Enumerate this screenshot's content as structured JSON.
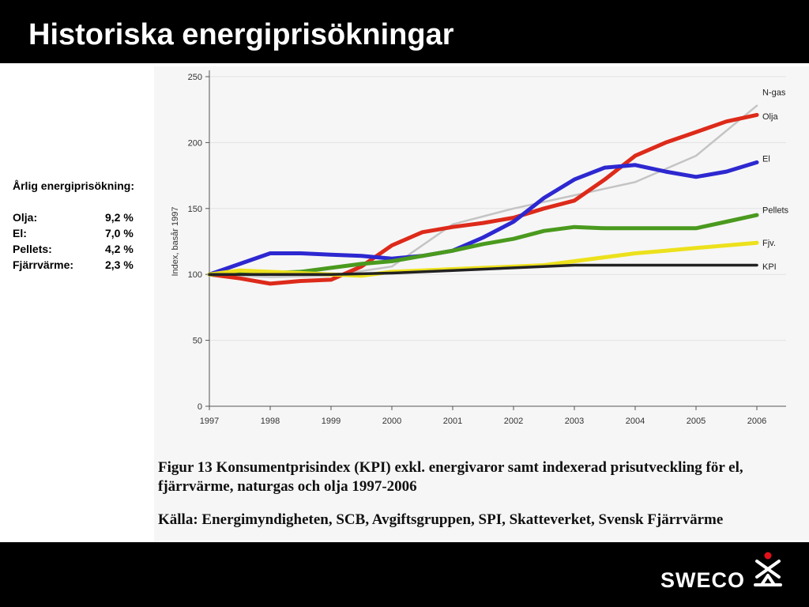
{
  "slide": {
    "title": "Historiska energiprisökningar"
  },
  "side_panel": {
    "heading": "Årlig energiprisökning:",
    "rows": [
      {
        "label": "Olja:",
        "value": "9,2 %"
      },
      {
        "label": "El:",
        "value": "7,0 %"
      },
      {
        "label": "Pellets:",
        "value": "4,2 %"
      },
      {
        "label": "Fjärrvärme:",
        "value": "2,3 %"
      }
    ]
  },
  "chart_data": {
    "type": "line",
    "ylabel": "Index, basår 1997",
    "xlabel": "",
    "ylim": [
      0,
      250
    ],
    "xlim": [
      1997,
      2006
    ],
    "y_ticks": [
      0,
      50,
      100,
      150,
      200,
      250
    ],
    "x_ticks": [
      1997,
      1998,
      1999,
      2000,
      2001,
      2002,
      2003,
      2004,
      2005,
      2006
    ],
    "grid": true,
    "legend": "inline-right",
    "caption": "Figur 13 Konsumentprisindex (KPI) exkl. energivaror samt indexerad prisutveckling för el, fjärrvärme, naturgas och olja 1997-2006",
    "source": "Källa: Energimyndigheten, SCB, Avgiftsgruppen, SPI, Skatteverket, Svensk Fjärrvärme",
    "series": [
      {
        "name": "N-gas",
        "color": "#c4c4c4",
        "x": [
          1997,
          1998,
          1999,
          2000,
          2001,
          2002,
          2003,
          2004,
          2005,
          2006
        ],
        "y": [
          100,
          98,
          99,
          106,
          138,
          150,
          160,
          170,
          190,
          228
        ]
      },
      {
        "name": "Olja",
        "color": "#dd2a1a",
        "x": [
          1997,
          1997.5,
          1998,
          1998.5,
          1999,
          1999.5,
          2000,
          2000.5,
          2001,
          2001.5,
          2002,
          2002.5,
          2003,
          2003.5,
          2004,
          2004.5,
          2005,
          2005.5,
          2006
        ],
        "y": [
          100,
          97,
          93,
          95,
          96,
          106,
          122,
          132,
          136,
          139,
          143,
          150,
          156,
          172,
          190,
          200,
          208,
          216,
          221
        ]
      },
      {
        "name": "El",
        "color": "#2d28d0",
        "x": [
          1997,
          1997.5,
          1998,
          1998.5,
          1999,
          1999.5,
          2000,
          2000.5,
          2001,
          2001.5,
          2002,
          2002.5,
          2003,
          2003.5,
          2004,
          2004.5,
          2005,
          2005.5,
          2006
        ],
        "y": [
          100,
          108,
          116,
          116,
          115,
          114,
          112,
          114,
          118,
          128,
          140,
          158,
          172,
          181,
          183,
          178,
          174,
          178,
          185
        ]
      },
      {
        "name": "Pellets",
        "color": "#4a9a1e",
        "x": [
          1997,
          1997.5,
          1998,
          1998.5,
          1999,
          1999.5,
          2000,
          2000.5,
          2001,
          2001.5,
          2002,
          2002.5,
          2003,
          2003.5,
          2004,
          2004.5,
          2005,
          2005.5,
          2006
        ],
        "y": [
          100,
          101,
          101,
          102,
          105,
          108,
          110,
          114,
          118,
          123,
          127,
          133,
          136,
          135,
          135,
          135,
          135,
          140,
          145
        ]
      },
      {
        "name": "Fjv.",
        "color": "#ece11c",
        "x": [
          1997,
          1997.5,
          1998,
          1998.5,
          1999,
          1999.5,
          2000,
          2000.5,
          2001,
          2001.5,
          2002,
          2002.5,
          2003,
          2003.5,
          2004,
          2004.5,
          2005,
          2005.5,
          2006
        ],
        "y": [
          100,
          103,
          102,
          101,
          100,
          99,
          102,
          103,
          104,
          105,
          106,
          107,
          110,
          113,
          116,
          118,
          120,
          122,
          124
        ]
      },
      {
        "name": "KPI",
        "color": "#222222",
        "x": [
          1997,
          1998,
          1999,
          2000,
          2001,
          2002,
          2003,
          2004,
          2005,
          2006
        ],
        "y": [
          100,
          100,
          100,
          101,
          103,
          105,
          107,
          107,
          107,
          107
        ]
      }
    ]
  },
  "logo": {
    "text": "SWECO",
    "icon": "sweco-logo-icon",
    "dot_color": "#e3101a"
  }
}
